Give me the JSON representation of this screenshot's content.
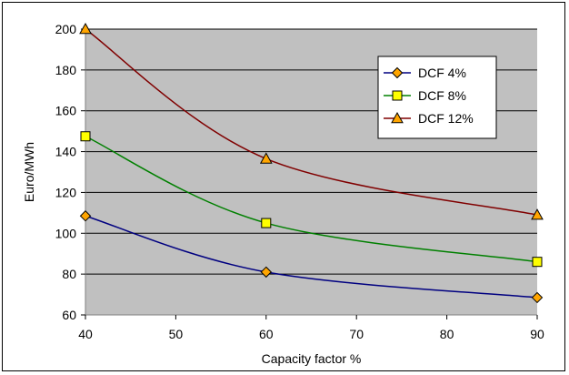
{
  "colors": {
    "plot_background": "#c0c0c0",
    "gridline": "#000000",
    "marker_fill": "#ffa500"
  },
  "chart_data": {
    "type": "line",
    "title": "",
    "xlabel": "Capacity factor %",
    "ylabel": "Euro/MWh",
    "x_ticks": [
      40,
      50,
      60,
      70,
      80,
      90
    ],
    "y_ticks": [
      60,
      80,
      100,
      120,
      140,
      160,
      180,
      200
    ],
    "xlim": [
      40,
      90
    ],
    "ylim": [
      60,
      200
    ],
    "grid": "horizontal",
    "legend_position": "top-right",
    "x": [
      40,
      60,
      90
    ],
    "series": [
      {
        "name": "DCF 4%",
        "values": [
          108.5,
          81,
          68.5
        ],
        "color": "#000080",
        "marker": "diamond",
        "marker_fill": "#ffa500"
      },
      {
        "name": "DCF 8%",
        "values": [
          147.5,
          105,
          86
        ],
        "color": "#008000",
        "marker": "square",
        "marker_fill": "#ffff00"
      },
      {
        "name": "DCF 12%",
        "values": [
          200,
          136.5,
          109
        ],
        "color": "#800000",
        "marker": "triangle",
        "marker_fill": "#ffa500"
      }
    ]
  }
}
